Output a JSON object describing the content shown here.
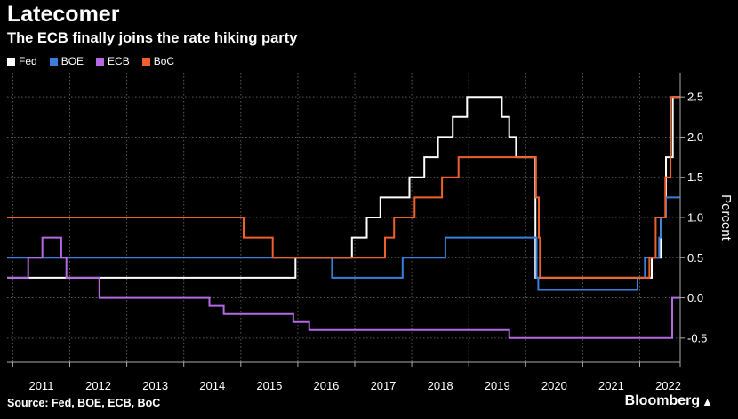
{
  "header": {
    "title": "Latecomer",
    "subtitle": "The ECB finally joins the rate hiking party"
  },
  "footer": {
    "source": "Source: Fed, BOE, ECB, BoC",
    "brand": "Bloomberg"
  },
  "chart_data": {
    "type": "line",
    "title": "Latecomer",
    "subtitle": "The ECB finally joins the rate hiking party",
    "ylabel": "Percent",
    "ylim": [
      -0.8,
      2.8
    ],
    "yticks": [
      2.5,
      2.0,
      1.5,
      1.0,
      0.5,
      0.0,
      -0.5
    ],
    "ytick_labels": [
      "2.5",
      "2.0",
      "1.5",
      "1.0",
      "0.5",
      "0.0",
      "-0.5"
    ],
    "xlim": [
      2010.9,
      2022.71
    ],
    "xtick_labels": [
      "2011",
      "2012",
      "2013",
      "2014",
      "2015",
      "2016",
      "2017",
      "2018",
      "2019",
      "2020",
      "2021",
      "2022"
    ],
    "grid": true,
    "legend_position": "top-left",
    "step": true,
    "series": [
      {
        "name": "Fed",
        "color": "#ffffff",
        "points": [
          [
            2010.9,
            0.25
          ],
          [
            2015.96,
            0.5
          ],
          [
            2016.95,
            0.75
          ],
          [
            2017.21,
            1.0
          ],
          [
            2017.45,
            1.25
          ],
          [
            2017.96,
            1.5
          ],
          [
            2018.22,
            1.75
          ],
          [
            2018.46,
            2.0
          ],
          [
            2018.72,
            2.25
          ],
          [
            2018.97,
            2.5
          ],
          [
            2019.58,
            2.25
          ],
          [
            2019.71,
            2.0
          ],
          [
            2019.83,
            1.75
          ],
          [
            2020.17,
            0.25
          ],
          [
            2022.21,
            0.5
          ],
          [
            2022.37,
            1.0
          ],
          [
            2022.46,
            1.75
          ],
          [
            2022.58,
            2.5
          ],
          [
            2022.7,
            2.5
          ]
        ]
      },
      {
        "name": "BOE",
        "color": "#3b7fdc",
        "points": [
          [
            2010.9,
            0.5
          ],
          [
            2016.6,
            0.25
          ],
          [
            2017.84,
            0.5
          ],
          [
            2018.59,
            0.75
          ],
          [
            2020.19,
            0.25
          ],
          [
            2020.22,
            0.1
          ],
          [
            2021.96,
            0.25
          ],
          [
            2022.09,
            0.5
          ],
          [
            2022.34,
            0.75
          ],
          [
            2022.37,
            1.0
          ],
          [
            2022.46,
            1.25
          ],
          [
            2022.7,
            1.25
          ]
        ]
      },
      {
        "name": "ECB",
        "color": "#b36ae2",
        "points": [
          [
            2010.9,
            0.25
          ],
          [
            2011.27,
            0.5
          ],
          [
            2011.52,
            0.75
          ],
          [
            2011.85,
            0.5
          ],
          [
            2011.94,
            0.25
          ],
          [
            2012.52,
            0.0
          ],
          [
            2014.45,
            -0.1
          ],
          [
            2014.7,
            -0.2
          ],
          [
            2015.92,
            -0.3
          ],
          [
            2016.2,
            -0.4
          ],
          [
            2019.71,
            -0.5
          ],
          [
            2022.57,
            0.0
          ],
          [
            2022.7,
            0.0
          ]
        ]
      },
      {
        "name": "BoC",
        "color": "#f0602b",
        "points": [
          [
            2010.9,
            1.0
          ],
          [
            2015.05,
            0.75
          ],
          [
            2015.56,
            0.5
          ],
          [
            2017.53,
            0.75
          ],
          [
            2017.69,
            1.0
          ],
          [
            2018.05,
            1.25
          ],
          [
            2018.53,
            1.5
          ],
          [
            2018.82,
            1.75
          ],
          [
            2020.18,
            1.25
          ],
          [
            2020.23,
            0.75
          ],
          [
            2020.25,
            0.25
          ],
          [
            2022.17,
            0.5
          ],
          [
            2022.28,
            1.0
          ],
          [
            2022.45,
            1.5
          ],
          [
            2022.54,
            2.5
          ],
          [
            2022.7,
            2.5
          ]
        ]
      }
    ]
  }
}
